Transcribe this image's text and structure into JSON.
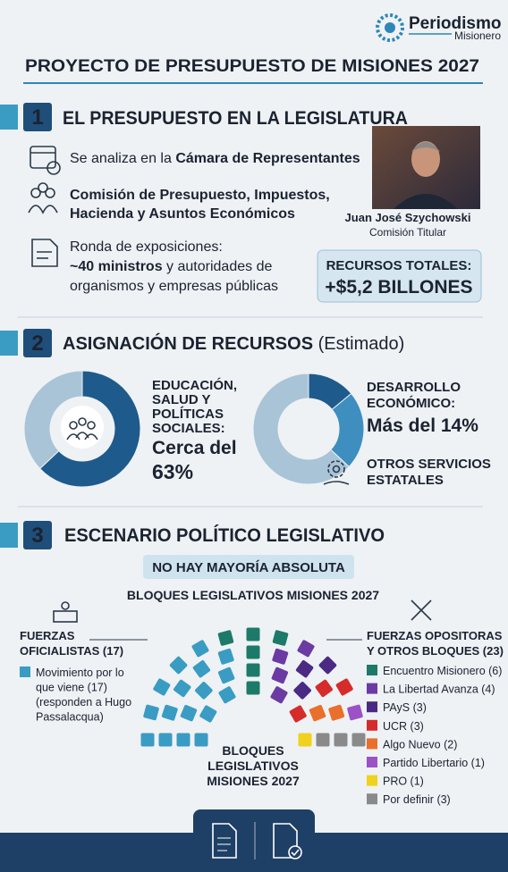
{
  "header": {
    "brand": "Periodismo",
    "brand_sub": "Misionero",
    "title": "PROYECTO DE PRESUPUESTO DE MISIONES 2027"
  },
  "section1": {
    "number": "1",
    "heading": "EL PRESUPUESTO EN LA LEGISLATURA",
    "item1": {
      "text": "Se analiza en la ",
      "emphasis": "Cámara de Representantes"
    },
    "item2": {
      "lines": [
        "Comisión de Presupuesto, Impuestos,",
        "Hacienda y Asuntos Económicos"
      ]
    },
    "item3": {
      "line1": "Ronda de exposiciones:",
      "emphasis": "~40 ministros",
      "line2_rest": " y autoridades de",
      "line3": "organismos y empresas públicas"
    },
    "person": {
      "name": "Juan José Szychowski",
      "role": "Comisión Titular"
    },
    "total": {
      "label": "RECURSOS TOTALES:",
      "value": "+$5,2 BILLONES"
    }
  },
  "section2": {
    "number": "2",
    "heading": "ASIGNACIÓN DE RECURSOS",
    "heading_note": " (Estimado)",
    "donut1": {
      "lines": [
        "EDUCACIÓN,",
        "SALUD Y",
        "POLÍTICAS",
        "SOCIALES:"
      ],
      "value_lines": [
        "Cerca del",
        "63%"
      ],
      "segments": [
        {
          "value": 63,
          "color": "#1f5a8c"
        },
        {
          "value": 37,
          "color": "#a9c4d6"
        }
      ]
    },
    "donut2": {
      "lines": [
        "DESARROLLO",
        "ECONÓMICO:"
      ],
      "value_text": "Más del 14%",
      "other_lines": [
        "OTROS SERVICIOS",
        "ESTATALES"
      ],
      "segments": [
        {
          "value": 14,
          "color": "#1f5a8c"
        },
        {
          "value": 23,
          "color": "#3e8fc0"
        },
        {
          "value": 63,
          "color": "#a9c4d6"
        }
      ]
    }
  },
  "section3": {
    "number": "3",
    "heading": "ESCENARIO POLÍTICO LEGISLATIVO",
    "badge": "NO HAY MAYORÍA ABSOLUTA",
    "chart_title": "BLOQUES LEGISLATIVOS MISIONES 2027",
    "center_lines": [
      "BLOQUES",
      "LEGISLATIVOS",
      "MISIONES 2027"
    ],
    "official": {
      "heading_lines": [
        "FUERZAS",
        "OFICIALISTAS (17)"
      ],
      "blocs": [
        {
          "name_lines": [
            "Movimiento por lo",
            "que viene (17)",
            "(responden a Hugo",
            "Passalacqua)"
          ],
          "seats": 17,
          "color": "#3a9cc2"
        }
      ]
    },
    "opposition": {
      "heading_lines": [
        "FUERZAS OPOSITORAS",
        "Y OTROS BLOQUES (23)"
      ],
      "blocs": [
        {
          "name": "Encuentro Misionero (6)",
          "seats": 6,
          "color": "#1d7a68"
        },
        {
          "name": "La Libertad Avanza (4)",
          "seats": 4,
          "color": "#6b3aa3"
        },
        {
          "name": "PAyS (3)",
          "seats": 3,
          "color": "#4a2a82"
        },
        {
          "name": "UCR (3)",
          "seats": 3,
          "color": "#d52b2b"
        },
        {
          "name": "Algo Nuevo (2)",
          "seats": 2,
          "color": "#e8702a"
        },
        {
          "name": "Partido Libertario (1)",
          "seats": 1,
          "color": "#9c52c4"
        },
        {
          "name": "PRO (1)",
          "seats": 1,
          "color": "#f0d21e"
        },
        {
          "name": "Por definir (3)",
          "seats": 3,
          "color": "#8a8a8a"
        }
      ]
    }
  }
}
